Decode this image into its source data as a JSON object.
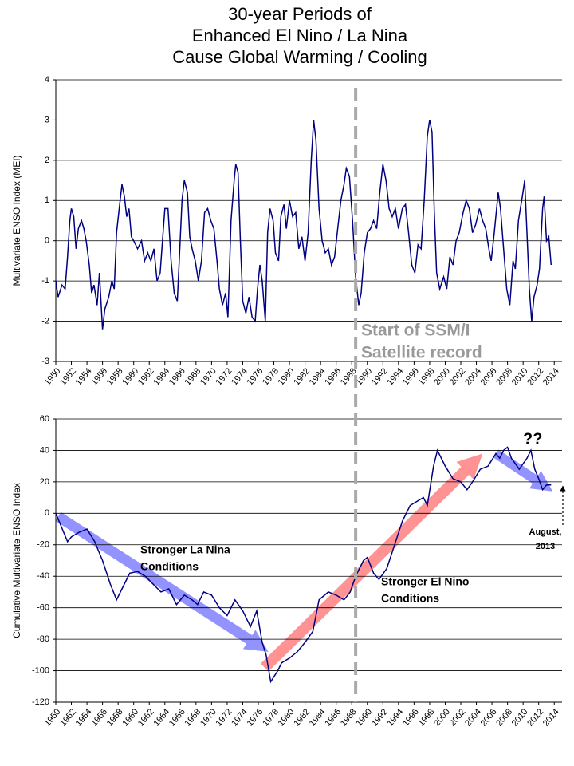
{
  "chart_data": [
    {
      "type": "line",
      "title": [
        "30-year Periods of",
        "Enhanced El Nino / La Nina",
        "Cause Global Warming / Cooling"
      ],
      "y_label": "Multivariate ENSO Index (MEI)",
      "annotations": [
        "Start of SSM/I",
        "Satellite record"
      ],
      "xlim": [
        1950,
        2015
      ],
      "xticks": [
        1950,
        1952,
        1954,
        1956,
        1958,
        1960,
        1962,
        1964,
        1966,
        1968,
        1970,
        1972,
        1974,
        1976,
        1978,
        1980,
        1982,
        1984,
        1986,
        1988,
        1990,
        1992,
        1994,
        1996,
        1998,
        2000,
        2002,
        2004,
        2006,
        2008,
        2010,
        2012,
        2014
      ],
      "ylim": [
        -3,
        4
      ],
      "yticks": [
        -3,
        -2,
        -1,
        0,
        1,
        2,
        3,
        4
      ],
      "grid": true,
      "series": [
        {
          "name": "MEI",
          "color": "#000080",
          "x": [
            1950,
            1950.3,
            1950.8,
            1951.2,
            1951.5,
            1951.8,
            1952,
            1952.3,
            1952.6,
            1952.9,
            1953.3,
            1953.6,
            1953.9,
            1954.3,
            1954.6,
            1954.9,
            1955.3,
            1955.6,
            1956,
            1956.3,
            1956.8,
            1957.2,
            1957.5,
            1957.8,
            1958.2,
            1958.5,
            1958.8,
            1959.1,
            1959.4,
            1959.7,
            1960,
            1960.5,
            1961,
            1961.4,
            1961.8,
            1962.2,
            1962.6,
            1963,
            1963.4,
            1963.7,
            1964,
            1964.4,
            1964.8,
            1965.2,
            1965.6,
            1965.9,
            1966.2,
            1966.5,
            1966.9,
            1967.2,
            1967.5,
            1967.9,
            1968.3,
            1968.7,
            1969.1,
            1969.5,
            1969.9,
            1970.3,
            1970.7,
            1971,
            1971.4,
            1971.8,
            1972.1,
            1972.5,
            1972.9,
            1973.1,
            1973.4,
            1973.7,
            1974,
            1974.4,
            1974.8,
            1975.2,
            1975.6,
            1975.9,
            1976.2,
            1976.5,
            1976.9,
            1977.2,
            1977.5,
            1977.9,
            1978.2,
            1978.6,
            1978.9,
            1979.3,
            1979.6,
            1980,
            1980.4,
            1980.8,
            1981.2,
            1981.6,
            1982,
            1982.4,
            1982.8,
            1983.1,
            1983.4,
            1983.8,
            1984.2,
            1984.6,
            1985,
            1985.4,
            1985.8,
            1986.2,
            1986.6,
            1987,
            1987.3,
            1987.7,
            1988.1,
            1988.5,
            1988.9,
            1989.2,
            1989.6,
            1990,
            1990.4,
            1990.8,
            1991.2,
            1991.6,
            1992,
            1992.4,
            1992.8,
            1993.2,
            1993.6,
            1994,
            1994.5,
            1994.9,
            1995.3,
            1995.7,
            1996.1,
            1996.5,
            1996.9,
            1997.3,
            1997.7,
            1998,
            1998.3,
            1998.6,
            1998.9,
            1999.3,
            1999.8,
            2000.2,
            2000.6,
            2001,
            2001.4,
            2001.8,
            2002.3,
            2002.7,
            2003.1,
            2003.5,
            2003.9,
            2004.4,
            2004.8,
            2005.2,
            2005.6,
            2005.9,
            2006.3,
            2006.8,
            2007.1,
            2007.5,
            2007.9,
            2008.3,
            2008.7,
            2009,
            2009.4,
            2009.9,
            2010.2,
            2010.5,
            2010.8,
            2011.1,
            2011.4,
            2011.8,
            2012.1,
            2012.5,
            2012.7,
            2013,
            2013.3,
            2013.6
          ],
          "values": [
            -1.0,
            -1.4,
            -1.1,
            -1.2,
            -0.4,
            0.5,
            0.8,
            0.6,
            -0.2,
            0.3,
            0.5,
            0.3,
            0.0,
            -0.6,
            -1.3,
            -1.1,
            -1.6,
            -0.8,
            -2.2,
            -1.7,
            -1.4,
            -1.0,
            -1.2,
            0.2,
            0.9,
            1.4,
            1.1,
            0.6,
            0.8,
            0.1,
            0.0,
            -0.2,
            0.0,
            -0.5,
            -0.3,
            -0.5,
            -0.2,
            -1.0,
            -0.8,
            0.0,
            0.8,
            0.8,
            -0.5,
            -1.3,
            -1.5,
            -0.3,
            1.0,
            1.5,
            1.2,
            0.1,
            -0.2,
            -0.5,
            -1.0,
            -0.5,
            0.7,
            0.8,
            0.5,
            0.3,
            -0.5,
            -1.2,
            -1.6,
            -1.3,
            -1.9,
            0.5,
            1.5,
            1.9,
            1.7,
            0.0,
            -1.5,
            -1.8,
            -1.4,
            -1.9,
            -2.0,
            -1.2,
            -0.6,
            -1.0,
            -2.0,
            0.2,
            0.8,
            0.5,
            -0.3,
            -0.5,
            0.6,
            0.9,
            0.3,
            1.0,
            0.6,
            0.7,
            -0.2,
            0.1,
            -0.5,
            0.2,
            2.0,
            3.0,
            2.5,
            0.8,
            0.0,
            -0.3,
            -0.2,
            -0.6,
            -0.4,
            0.3,
            1.0,
            1.4,
            1.8,
            1.6,
            0.5,
            -0.9,
            -1.6,
            -1.3,
            -0.3,
            0.2,
            0.3,
            0.5,
            0.3,
            1.2,
            1.9,
            1.5,
            0.8,
            0.6,
            0.8,
            0.3,
            0.8,
            0.9,
            0.2,
            -0.6,
            -0.8,
            -0.1,
            -0.2,
            1.0,
            2.6,
            3.0,
            2.7,
            0.7,
            -0.8,
            -1.2,
            -0.9,
            -1.2,
            -0.4,
            -0.6,
            0.0,
            0.2,
            0.7,
            1.0,
            0.8,
            0.2,
            0.4,
            0.8,
            0.5,
            0.3,
            -0.2,
            -0.5,
            0.2,
            1.2,
            0.8,
            -0.2,
            -1.2,
            -1.6,
            -0.5,
            -0.7,
            0.5,
            1.1,
            1.5,
            0.2,
            -1.2,
            -2.0,
            -1.4,
            -1.1,
            -0.7,
            0.8,
            1.1,
            0.0,
            0.1,
            -0.6
          ]
        }
      ]
    },
    {
      "type": "line",
      "y_label": "Cumulative Multivariate ENSO Index",
      "annotations": [
        "Stronger La Nina",
        "Conditions",
        "Stronger El Nino",
        "Conditions",
        "??",
        "August,",
        "2013"
      ],
      "xlim": [
        1950,
        2015
      ],
      "xticks": [
        1950,
        1952,
        1954,
        1956,
        1958,
        1960,
        1962,
        1964,
        1966,
        1968,
        1970,
        1972,
        1974,
        1976,
        1978,
        1980,
        1982,
        1984,
        1986,
        1988,
        1990,
        1992,
        1994,
        1996,
        1998,
        2000,
        2002,
        2004,
        2006,
        2008,
        2010,
        2012,
        2014
      ],
      "ylim": [
        -120,
        60
      ],
      "yticks": [
        -120,
        -100,
        -80,
        -60,
        -40,
        -20,
        0,
        20,
        40,
        60
      ],
      "grid": true,
      "series": [
        {
          "name": "Cumulative MEI",
          "color": "#000080",
          "x": [
            1950,
            1951,
            1951.5,
            1952,
            1953,
            1954,
            1955,
            1956,
            1957,
            1957.8,
            1958.5,
            1959.5,
            1960.5,
            1961.5,
            1962.5,
            1963.5,
            1964.5,
            1965.5,
            1966.5,
            1967.5,
            1968.2,
            1969,
            1970,
            1971,
            1972,
            1973,
            1974,
            1975,
            1975.8,
            1976.5,
            1977,
            1977.6,
            1978.5,
            1979,
            1980,
            1981,
            1982,
            1983,
            1983.8,
            1985,
            1986,
            1987,
            1987.8,
            1988.5,
            1989.5,
            1990,
            1990.8,
            1991.5,
            1992.5,
            1993.5,
            1994.5,
            1995.5,
            1996.5,
            1997.2,
            1997.7,
            1998.5,
            1999,
            2000,
            2001,
            2002,
            2002.8,
            2003.5,
            2004.5,
            2005.5,
            2006.5,
            2007,
            2007.5,
            2008,
            2008.5,
            2009.5,
            2010.5,
            2011,
            2011.5,
            2012,
            2012.5,
            2013,
            2013.6
          ],
          "values": [
            0,
            -12,
            -18,
            -15,
            -12,
            -10,
            -18,
            -30,
            -45,
            -55,
            -48,
            -38,
            -37,
            -40,
            -45,
            -50,
            -48,
            -58,
            -52,
            -55,
            -58,
            -50,
            -52,
            -60,
            -65,
            -55,
            -62,
            -72,
            -62,
            -82,
            -90,
            -107,
            -100,
            -95,
            -92,
            -88,
            -82,
            -75,
            -55,
            -50,
            -52,
            -55,
            -50,
            -40,
            -30,
            -28,
            -38,
            -42,
            -35,
            -20,
            -5,
            5,
            8,
            10,
            5,
            30,
            40,
            30,
            22,
            20,
            15,
            20,
            28,
            30,
            38,
            35,
            40,
            42,
            35,
            28,
            35,
            40,
            28,
            22,
            15,
            18,
            18
          ]
        }
      ]
    }
  ]
}
